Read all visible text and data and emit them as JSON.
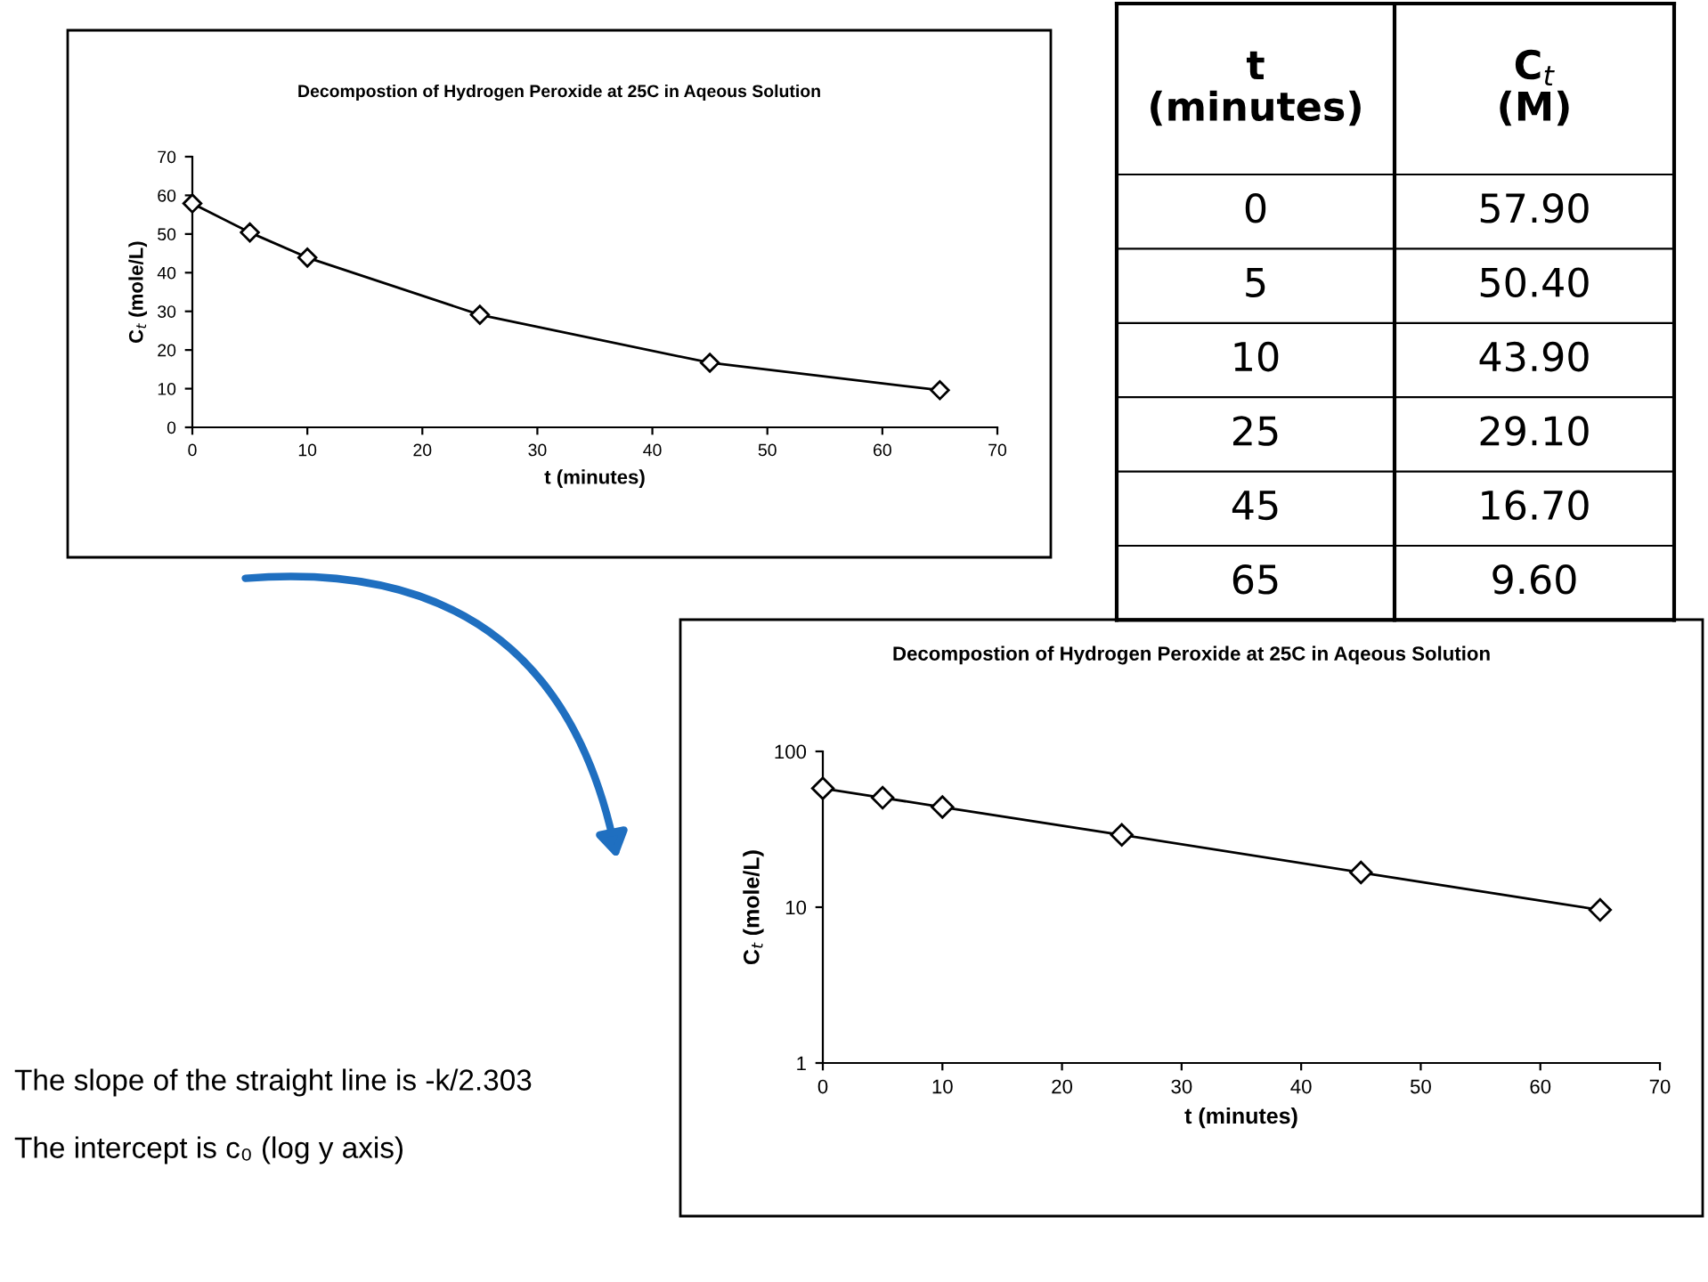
{
  "chart_data": [
    {
      "type": "line",
      "title": "Decompostion of Hydrogen Peroxide at 25C in Aqeous Solution",
      "xlabel": "t (minutes)",
      "ylabel": "C$_{t}$ (mole/L)",
      "x": [
        0,
        5,
        10,
        25,
        45,
        65
      ],
      "series": [
        {
          "color": "#000000",
          "values": [
            57.9,
            50.4,
            43.9,
            29.1,
            16.7,
            9.6
          ]
        }
      ],
      "xlim": [
        0,
        70
      ],
      "xticks": [
        0,
        10,
        20,
        30,
        40,
        50,
        60,
        70
      ],
      "ylim": [
        0,
        70
      ],
      "yticks": [
        0,
        10,
        20,
        30,
        40,
        50,
        60,
        70
      ],
      "marker": "diamond",
      "line_style": "solid"
    },
    {
      "type": "other",
      "annotations": [
        "t\n(minutes)",
        "C$_{t}$\n(M)",
        "0",
        "57.90",
        "5",
        "50.40",
        "10",
        "43.90",
        "25",
        "29.10",
        "45",
        "16.70",
        "65",
        "9.60"
      ]
    },
    {
      "type": "line",
      "title": "Decompostion of Hydrogen Peroxide at 25C in Aqeous Solution",
      "xlabel": "t (minutes)",
      "ylabel": "C$_{t}$ (mole/L)",
      "x": [
        0,
        5,
        10,
        25,
        45,
        65
      ],
      "series": [
        {
          "color": "#000000",
          "values": [
            57.9,
            50.4,
            43.9,
            29.1,
            16.7,
            9.6
          ]
        }
      ],
      "log": "y",
      "xlim": [
        0,
        70
      ],
      "xticks": [
        0,
        10,
        20,
        30,
        40,
        50,
        60,
        70
      ],
      "ylim": [
        1,
        100
      ],
      "yticks": [
        1,
        10,
        100
      ],
      "marker": "diamond",
      "line_style": "solid",
      "annotations": [
        "The slope of the straight line is -k/2.303",
        "The intercept is c₀ (log y axis)"
      ]
    }
  ]
}
